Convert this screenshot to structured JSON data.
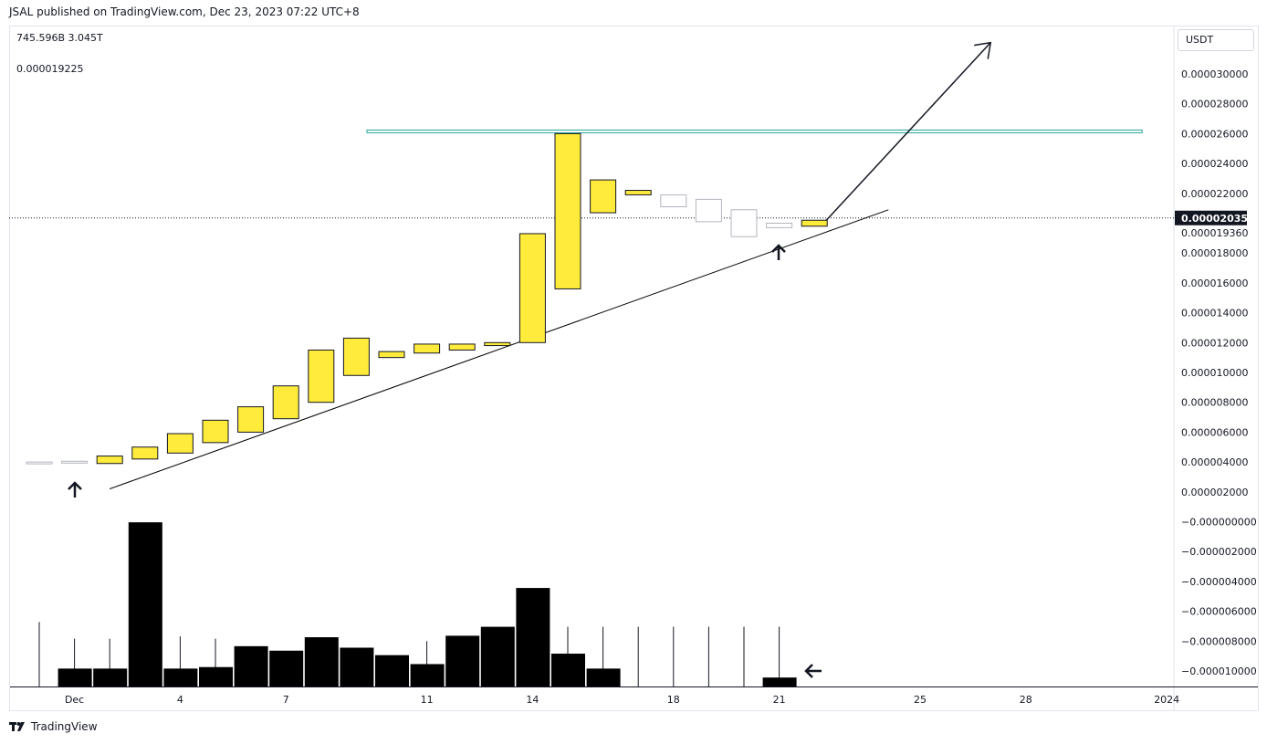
{
  "header": {
    "published": "JSAL published on TradingView.com, Dec 23, 2023 07:22 UTC+8"
  },
  "legend": {
    "volume_line": "745.596B  3.045T",
    "indicator_value": "0.000019225"
  },
  "price_scale": {
    "currency": "USDT",
    "current_price_label": "0.00002035​1",
    "secondary_label": "0.000019360"
  },
  "brand": {
    "text": "TradingView"
  },
  "colors": {
    "up_candle": "#ffeb3b",
    "candle_border": "#131722",
    "faded_candle": "#b2b5be",
    "resistance_line": "#26a69a",
    "volume_bar": "#000000",
    "trend_line": "#000000"
  },
  "chart_data": {
    "type": "candlestick",
    "x_tick_labels": [
      {
        "day": 1,
        "label": "Dec"
      },
      {
        "day": 4,
        "label": "4"
      },
      {
        "day": 7,
        "label": "7"
      },
      {
        "day": 11,
        "label": "11"
      },
      {
        "day": 14,
        "label": "14"
      },
      {
        "day": 18,
        "label": "18"
      },
      {
        "day": 21,
        "label": "21"
      },
      {
        "day": 25,
        "label": "25"
      },
      {
        "day": 28,
        "label": "28"
      },
      {
        "day": 32,
        "label": "2024"
      }
    ],
    "y_tick_labels": [
      "0.000030000",
      "0.000028000",
      "0.000026000",
      "0.000024000",
      "0.000022000",
      "0.000018000",
      "0.000016000",
      "0.000014000",
      "0.000012000",
      "0.000010000",
      "0.000008000",
      "0.000006000",
      "0.000004000",
      "0.000002000",
      "−0.000000000",
      "−0.000002000",
      "−0.000004000",
      "−0.000006000",
      "−0.000008000",
      "−0.000010000"
    ],
    "y_tick_values": [
      30,
      28,
      26,
      24,
      22,
      18,
      16,
      14,
      12,
      10,
      8,
      6,
      4,
      2,
      0,
      -2,
      -4,
      -6,
      -8,
      -10
    ],
    "y_unit_note": "values in 1e-6 USDT",
    "ylim": [
      -11.2,
      33.2
    ],
    "candles": [
      {
        "day": 0,
        "open": 3.95,
        "close": 4.0,
        "faded": true
      },
      {
        "day": 1,
        "open": 3.95,
        "close": 4.05,
        "faded": true
      },
      {
        "day": 2,
        "open": 3.9,
        "close": 4.4,
        "faded": false
      },
      {
        "day": 3,
        "open": 4.2,
        "close": 5.0,
        "faded": false
      },
      {
        "day": 4,
        "open": 4.6,
        "close": 5.9,
        "faded": false
      },
      {
        "day": 5,
        "open": 5.3,
        "close": 6.8,
        "faded": false
      },
      {
        "day": 6,
        "open": 6.0,
        "close": 7.7,
        "faded": false
      },
      {
        "day": 7,
        "open": 6.9,
        "close": 9.1,
        "faded": false
      },
      {
        "day": 8,
        "open": 8.0,
        "close": 11.5,
        "faded": false
      },
      {
        "day": 9,
        "open": 9.8,
        "close": 12.3,
        "faded": false
      },
      {
        "day": 10,
        "open": 11.0,
        "close": 11.4,
        "faded": false
      },
      {
        "day": 11,
        "open": 11.3,
        "close": 11.9,
        "faded": false
      },
      {
        "day": 12,
        "open": 11.5,
        "close": 11.9,
        "faded": false
      },
      {
        "day": 13,
        "open": 11.8,
        "close": 12.0,
        "faded": false
      },
      {
        "day": 14,
        "open": 12.0,
        "close": 19.3,
        "faded": false
      },
      {
        "day": 15,
        "open": 15.6,
        "close": 26.0,
        "faded": false
      },
      {
        "day": 16,
        "open": 20.7,
        "close": 22.9,
        "faded": false
      },
      {
        "day": 17,
        "open": 21.9,
        "close": 22.2,
        "faded": false
      },
      {
        "day": 18,
        "open": 21.1,
        "close": 21.9,
        "faded": true
      },
      {
        "day": 19,
        "open": 20.1,
        "close": 21.6,
        "faded": true
      },
      {
        "day": 20,
        "open": 19.1,
        "close": 20.9,
        "faded": true
      },
      {
        "day": 21,
        "open": 19.7,
        "close": 20.0,
        "faded": true
      },
      {
        "day": 22,
        "open": 19.8,
        "close": 20.2,
        "faded": false
      }
    ],
    "volume": [
      {
        "day": 0,
        "value": 0.0,
        "wick": 2.7
      },
      {
        "day": 1,
        "value": 1.2,
        "wick": 2.0
      },
      {
        "day": 2,
        "value": 1.2,
        "wick": 2.0
      },
      {
        "day": 3,
        "value": 11.0,
        "wick": 0
      },
      {
        "day": 4,
        "value": 1.2,
        "wick": 2.1
      },
      {
        "day": 5,
        "value": 1.3,
        "wick": 2.0
      },
      {
        "day": 6,
        "value": 2.7,
        "wick": 0
      },
      {
        "day": 7,
        "value": 2.4,
        "wick": 0
      },
      {
        "day": 8,
        "value": 3.3,
        "wick": 0
      },
      {
        "day": 9,
        "value": 2.6,
        "wick": 0
      },
      {
        "day": 10,
        "value": 2.1,
        "wick": 0
      },
      {
        "day": 11,
        "value": 1.5,
        "wick": 1.9
      },
      {
        "day": 12,
        "value": 3.4,
        "wick": 0
      },
      {
        "day": 13,
        "value": 4.0,
        "wick": 0
      },
      {
        "day": 14,
        "value": 6.6,
        "wick": 0
      },
      {
        "day": 15,
        "value": 2.2,
        "wick": 2.5
      },
      {
        "day": 16,
        "value": 1.2,
        "wick": 2.5
      },
      {
        "day": 17,
        "value": 0.0,
        "wick": 2.5
      },
      {
        "day": 18,
        "value": 0.0,
        "wick": 2.5
      },
      {
        "day": 19,
        "value": 0.0,
        "wick": 2.5
      },
      {
        "day": 20,
        "value": 0.0,
        "wick": 2.5
      },
      {
        "day": 21,
        "value": 0.6,
        "wick": 2.5
      }
    ],
    "horizontal_line": {
      "price": 26.15,
      "day_start": 9.3,
      "day_end": 31.3
    },
    "current_price_line": 20.351,
    "trend_line": {
      "start": {
        "day": 2.0,
        "price": 2.2
      },
      "end": {
        "day": 24.1,
        "price": 20.9
      }
    },
    "projection_arrow": {
      "start": {
        "day": 22.3,
        "price": 20.1
      },
      "end": {
        "day": 27.0,
        "price": 32.1
      }
    }
  }
}
